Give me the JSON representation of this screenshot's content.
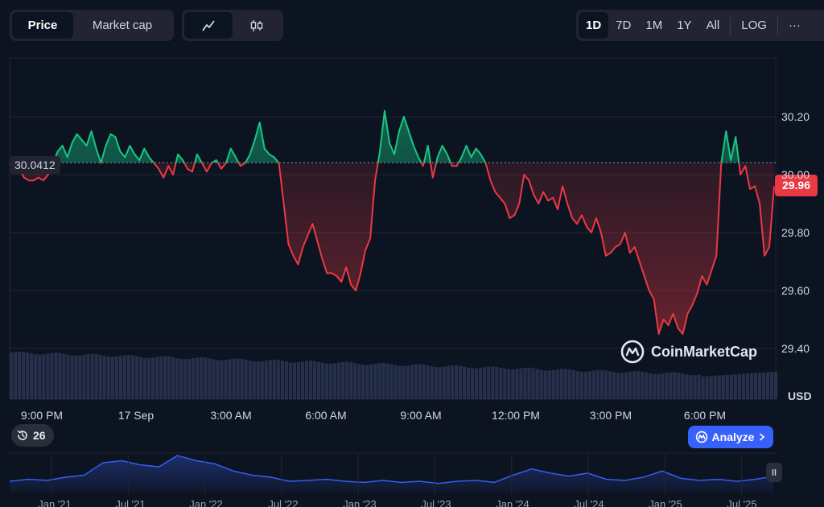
{
  "toolbar": {
    "type_options": [
      "Price",
      "Market cap"
    ],
    "active_type": "Price",
    "style_options": [
      "line-chart-icon",
      "candlestick-icon"
    ],
    "ranges": [
      "1D",
      "7D",
      "1M",
      "1Y",
      "All"
    ],
    "active_range": "1D",
    "log_label": "LOG",
    "more_label": "···"
  },
  "chart_data": {
    "type": "line",
    "currency": "USD",
    "reference_price": 30.0412,
    "reference_label": "30.0412",
    "current_price": 29.96,
    "current_label": "29.96",
    "ylim": [
      29.3,
      30.4
    ],
    "yticks": [
      "30.20",
      "30.00",
      "29.80",
      "29.60",
      "29.40"
    ],
    "ytick_values": [
      30.2,
      30.0,
      29.8,
      29.6,
      29.4
    ],
    "xticks": [
      "9:00 PM",
      "17 Sep",
      "3:00 AM",
      "6:00 AM",
      "9:00 AM",
      "12:00 PM",
      "3:00 PM",
      "6:00 PM"
    ],
    "above_color": "#16c784",
    "below_color": "#ea3943",
    "series": [
      {
        "values": [
          30.04,
          30.01,
          30.02,
          29.99,
          29.98,
          29.98,
          29.99,
          29.98,
          30.0,
          30.04,
          30.08,
          30.1,
          30.06,
          30.11,
          30.14,
          30.12,
          30.1,
          30.15,
          30.09,
          30.04,
          30.1,
          30.14,
          30.13,
          30.08,
          30.06,
          30.1,
          30.07,
          30.05,
          30.09,
          30.06,
          30.04,
          30.02,
          29.99,
          30.03,
          30.0,
          30.07,
          30.05,
          30.02,
          30.01,
          30.07,
          30.04,
          30.01,
          30.04,
          30.05,
          30.02,
          30.04,
          30.09,
          30.06,
          30.03,
          30.04,
          30.07,
          30.12,
          30.18,
          30.09,
          30.07,
          30.06,
          30.04,
          29.9,
          29.76,
          29.72,
          29.69,
          29.75,
          29.79,
          29.83,
          29.77,
          29.71,
          29.66,
          29.66,
          29.65,
          29.63,
          29.68,
          29.62,
          29.6,
          29.66,
          29.74,
          29.78,
          29.98,
          30.08,
          30.22,
          30.11,
          30.07,
          30.15,
          30.2,
          30.15,
          30.1,
          30.06,
          30.03,
          30.1,
          29.99,
          30.06,
          30.1,
          30.07,
          30.03,
          30.03,
          30.06,
          30.1,
          30.06,
          30.09,
          30.07,
          30.04,
          29.98,
          29.94,
          29.92,
          29.9,
          29.85,
          29.86,
          29.9,
          30.0,
          29.98,
          29.93,
          29.9,
          29.94,
          29.91,
          29.92,
          29.88,
          29.96,
          29.9,
          29.85,
          29.83,
          29.86,
          29.82,
          29.8,
          29.85,
          29.8,
          29.72,
          29.73,
          29.75,
          29.76,
          29.8,
          29.73,
          29.75,
          29.7,
          29.65,
          29.6,
          29.57,
          29.45,
          29.5,
          29.48,
          29.52,
          29.47,
          29.45,
          29.52,
          29.55,
          29.59,
          29.65,
          29.62,
          29.67,
          29.72,
          30.04,
          30.15,
          30.05,
          30.13,
          30.0,
          30.03,
          29.95,
          29.96,
          29.9,
          29.72,
          29.75,
          29.96
        ]
      }
    ]
  },
  "mini_chart": {
    "labels": [
      "Jan '21",
      "Jul '21",
      "Jan '22",
      "Jul '22",
      "Jan '23",
      "Jul '23",
      "Jan '24",
      "Jul '24",
      "Jan '25",
      "Jul '25"
    ],
    "values": [
      1,
      1.2,
      1.1,
      1.4,
      1.6,
      2.8,
      3.0,
      2.6,
      2.4,
      3.5,
      3.0,
      2.7,
      2.0,
      1.6,
      1.4,
      1.0,
      1.1,
      1.2,
      1.0,
      0.9,
      1.1,
      0.9,
      1.0,
      0.8,
      1.0,
      1.1,
      0.9,
      1.6,
      2.2,
      1.8,
      1.5,
      1.8,
      1.2,
      1.1,
      1.4,
      2.0,
      1.3,
      1.1,
      1.2,
      1.0,
      1.2,
      1.5
    ]
  },
  "watermark": "CoinMarketCap",
  "history_count": "26",
  "analyze_label": "Analyze"
}
